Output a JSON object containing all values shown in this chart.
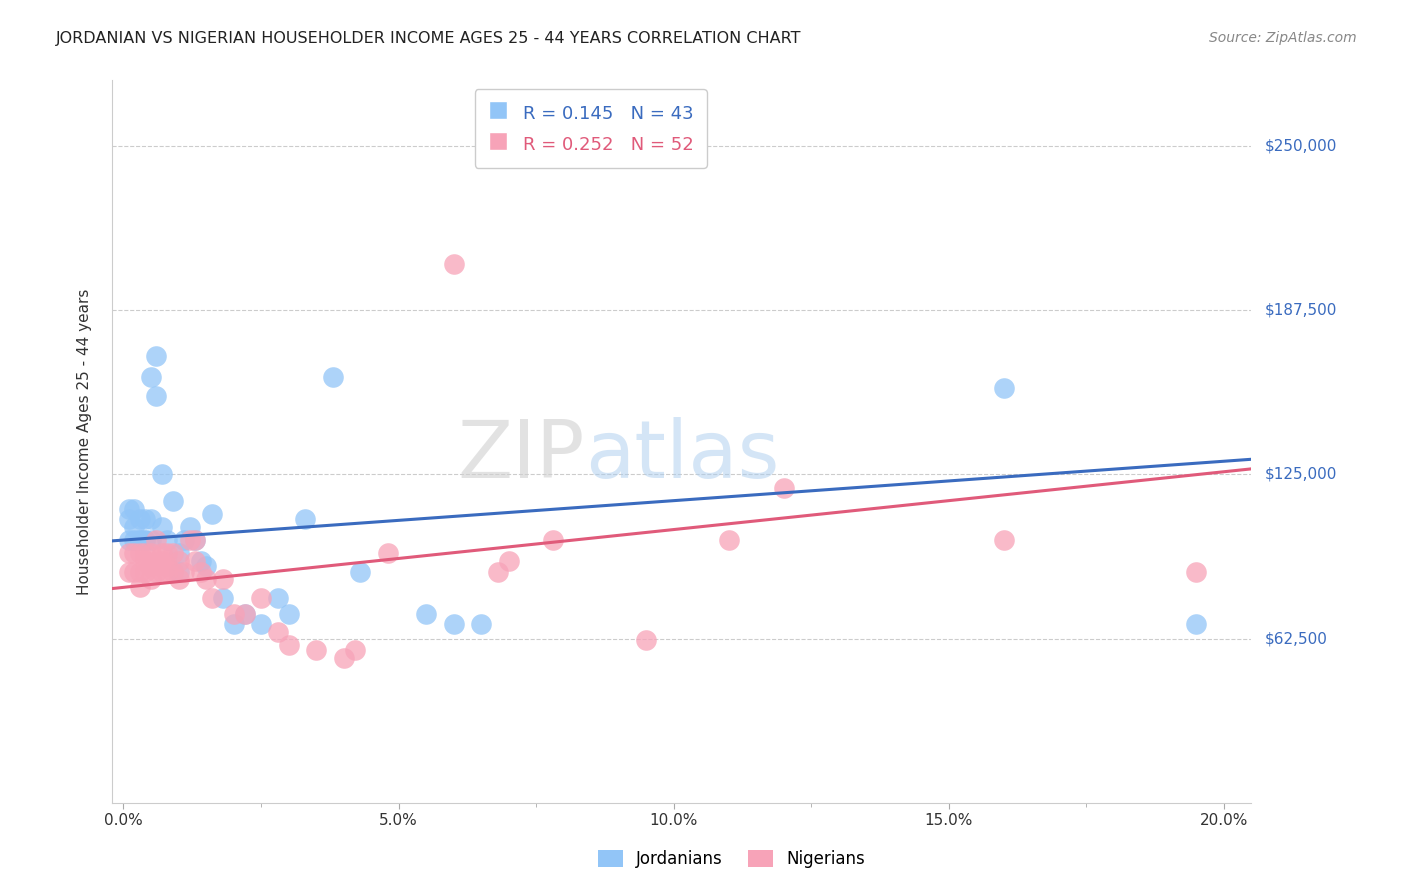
{
  "title": "JORDANIAN VS NIGERIAN HOUSEHOLDER INCOME AGES 25 - 44 YEARS CORRELATION CHART",
  "source": "Source: ZipAtlas.com",
  "ylabel": "Householder Income Ages 25 - 44 years",
  "ylabel_ticks": [
    "$62,500",
    "$125,000",
    "$187,500",
    "$250,000"
  ],
  "ylabel_vals": [
    62500,
    125000,
    187500,
    250000
  ],
  "xlabel_ticks": [
    "0.0%",
    "",
    "5.0%",
    "",
    "10.0%",
    "",
    "15.0%",
    "",
    "20.0%"
  ],
  "xlabel_vals": [
    0.0,
    0.025,
    0.05,
    0.075,
    0.1,
    0.125,
    0.15,
    0.175,
    0.2
  ],
  "ylim": [
    0,
    275000
  ],
  "xlim": [
    -0.002,
    0.205
  ],
  "R_jordan": 0.145,
  "N_jordan": 43,
  "R_nigerian": 0.252,
  "N_nigerian": 52,
  "jordan_color": "#92c5f7",
  "nigerian_color": "#f7a3b8",
  "jordan_line_color": "#3a6bbf",
  "nigerian_line_color": "#e05a7a",
  "jordan_x": [
    0.001,
    0.001,
    0.001,
    0.002,
    0.002,
    0.002,
    0.003,
    0.003,
    0.003,
    0.004,
    0.004,
    0.004,
    0.005,
    0.005,
    0.005,
    0.006,
    0.006,
    0.007,
    0.007,
    0.008,
    0.009,
    0.01,
    0.01,
    0.011,
    0.012,
    0.013,
    0.014,
    0.015,
    0.016,
    0.018,
    0.02,
    0.022,
    0.025,
    0.028,
    0.03,
    0.033,
    0.038,
    0.043,
    0.055,
    0.06,
    0.065,
    0.16,
    0.195
  ],
  "jordan_y": [
    100000,
    108000,
    112000,
    100000,
    105000,
    112000,
    100000,
    100000,
    108000,
    100000,
    100000,
    108000,
    100000,
    108000,
    162000,
    170000,
    155000,
    105000,
    125000,
    100000,
    115000,
    88000,
    95000,
    100000,
    105000,
    100000,
    92000,
    90000,
    110000,
    78000,
    68000,
    72000,
    68000,
    78000,
    72000,
    108000,
    162000,
    88000,
    72000,
    68000,
    68000,
    158000,
    68000
  ],
  "nigerian_x": [
    0.001,
    0.001,
    0.002,
    0.002,
    0.003,
    0.003,
    0.003,
    0.004,
    0.004,
    0.004,
    0.005,
    0.005,
    0.005,
    0.006,
    0.006,
    0.006,
    0.007,
    0.007,
    0.007,
    0.008,
    0.008,
    0.008,
    0.009,
    0.009,
    0.01,
    0.01,
    0.011,
    0.012,
    0.013,
    0.013,
    0.014,
    0.015,
    0.016,
    0.018,
    0.02,
    0.022,
    0.025,
    0.028,
    0.03,
    0.035,
    0.04,
    0.042,
    0.048,
    0.06,
    0.068,
    0.07,
    0.078,
    0.095,
    0.11,
    0.12,
    0.16,
    0.195
  ],
  "nigerian_y": [
    88000,
    95000,
    88000,
    95000,
    82000,
    88000,
    95000,
    88000,
    92000,
    95000,
    85000,
    90000,
    95000,
    88000,
    92000,
    100000,
    88000,
    92000,
    95000,
    88000,
    90000,
    95000,
    88000,
    95000,
    85000,
    92000,
    88000,
    100000,
    92000,
    100000,
    88000,
    85000,
    78000,
    85000,
    72000,
    72000,
    78000,
    65000,
    60000,
    58000,
    55000,
    58000,
    95000,
    205000,
    88000,
    92000,
    100000,
    62000,
    100000,
    120000,
    100000,
    88000
  ],
  "watermark_zip": "ZIP",
  "watermark_atlas": "atlas",
  "background_color": "#ffffff",
  "grid_color": "#cccccc",
  "jordan_intercept": 100000,
  "jordan_slope": 150000,
  "nigerian_intercept": 82000,
  "nigerian_slope": 220000
}
